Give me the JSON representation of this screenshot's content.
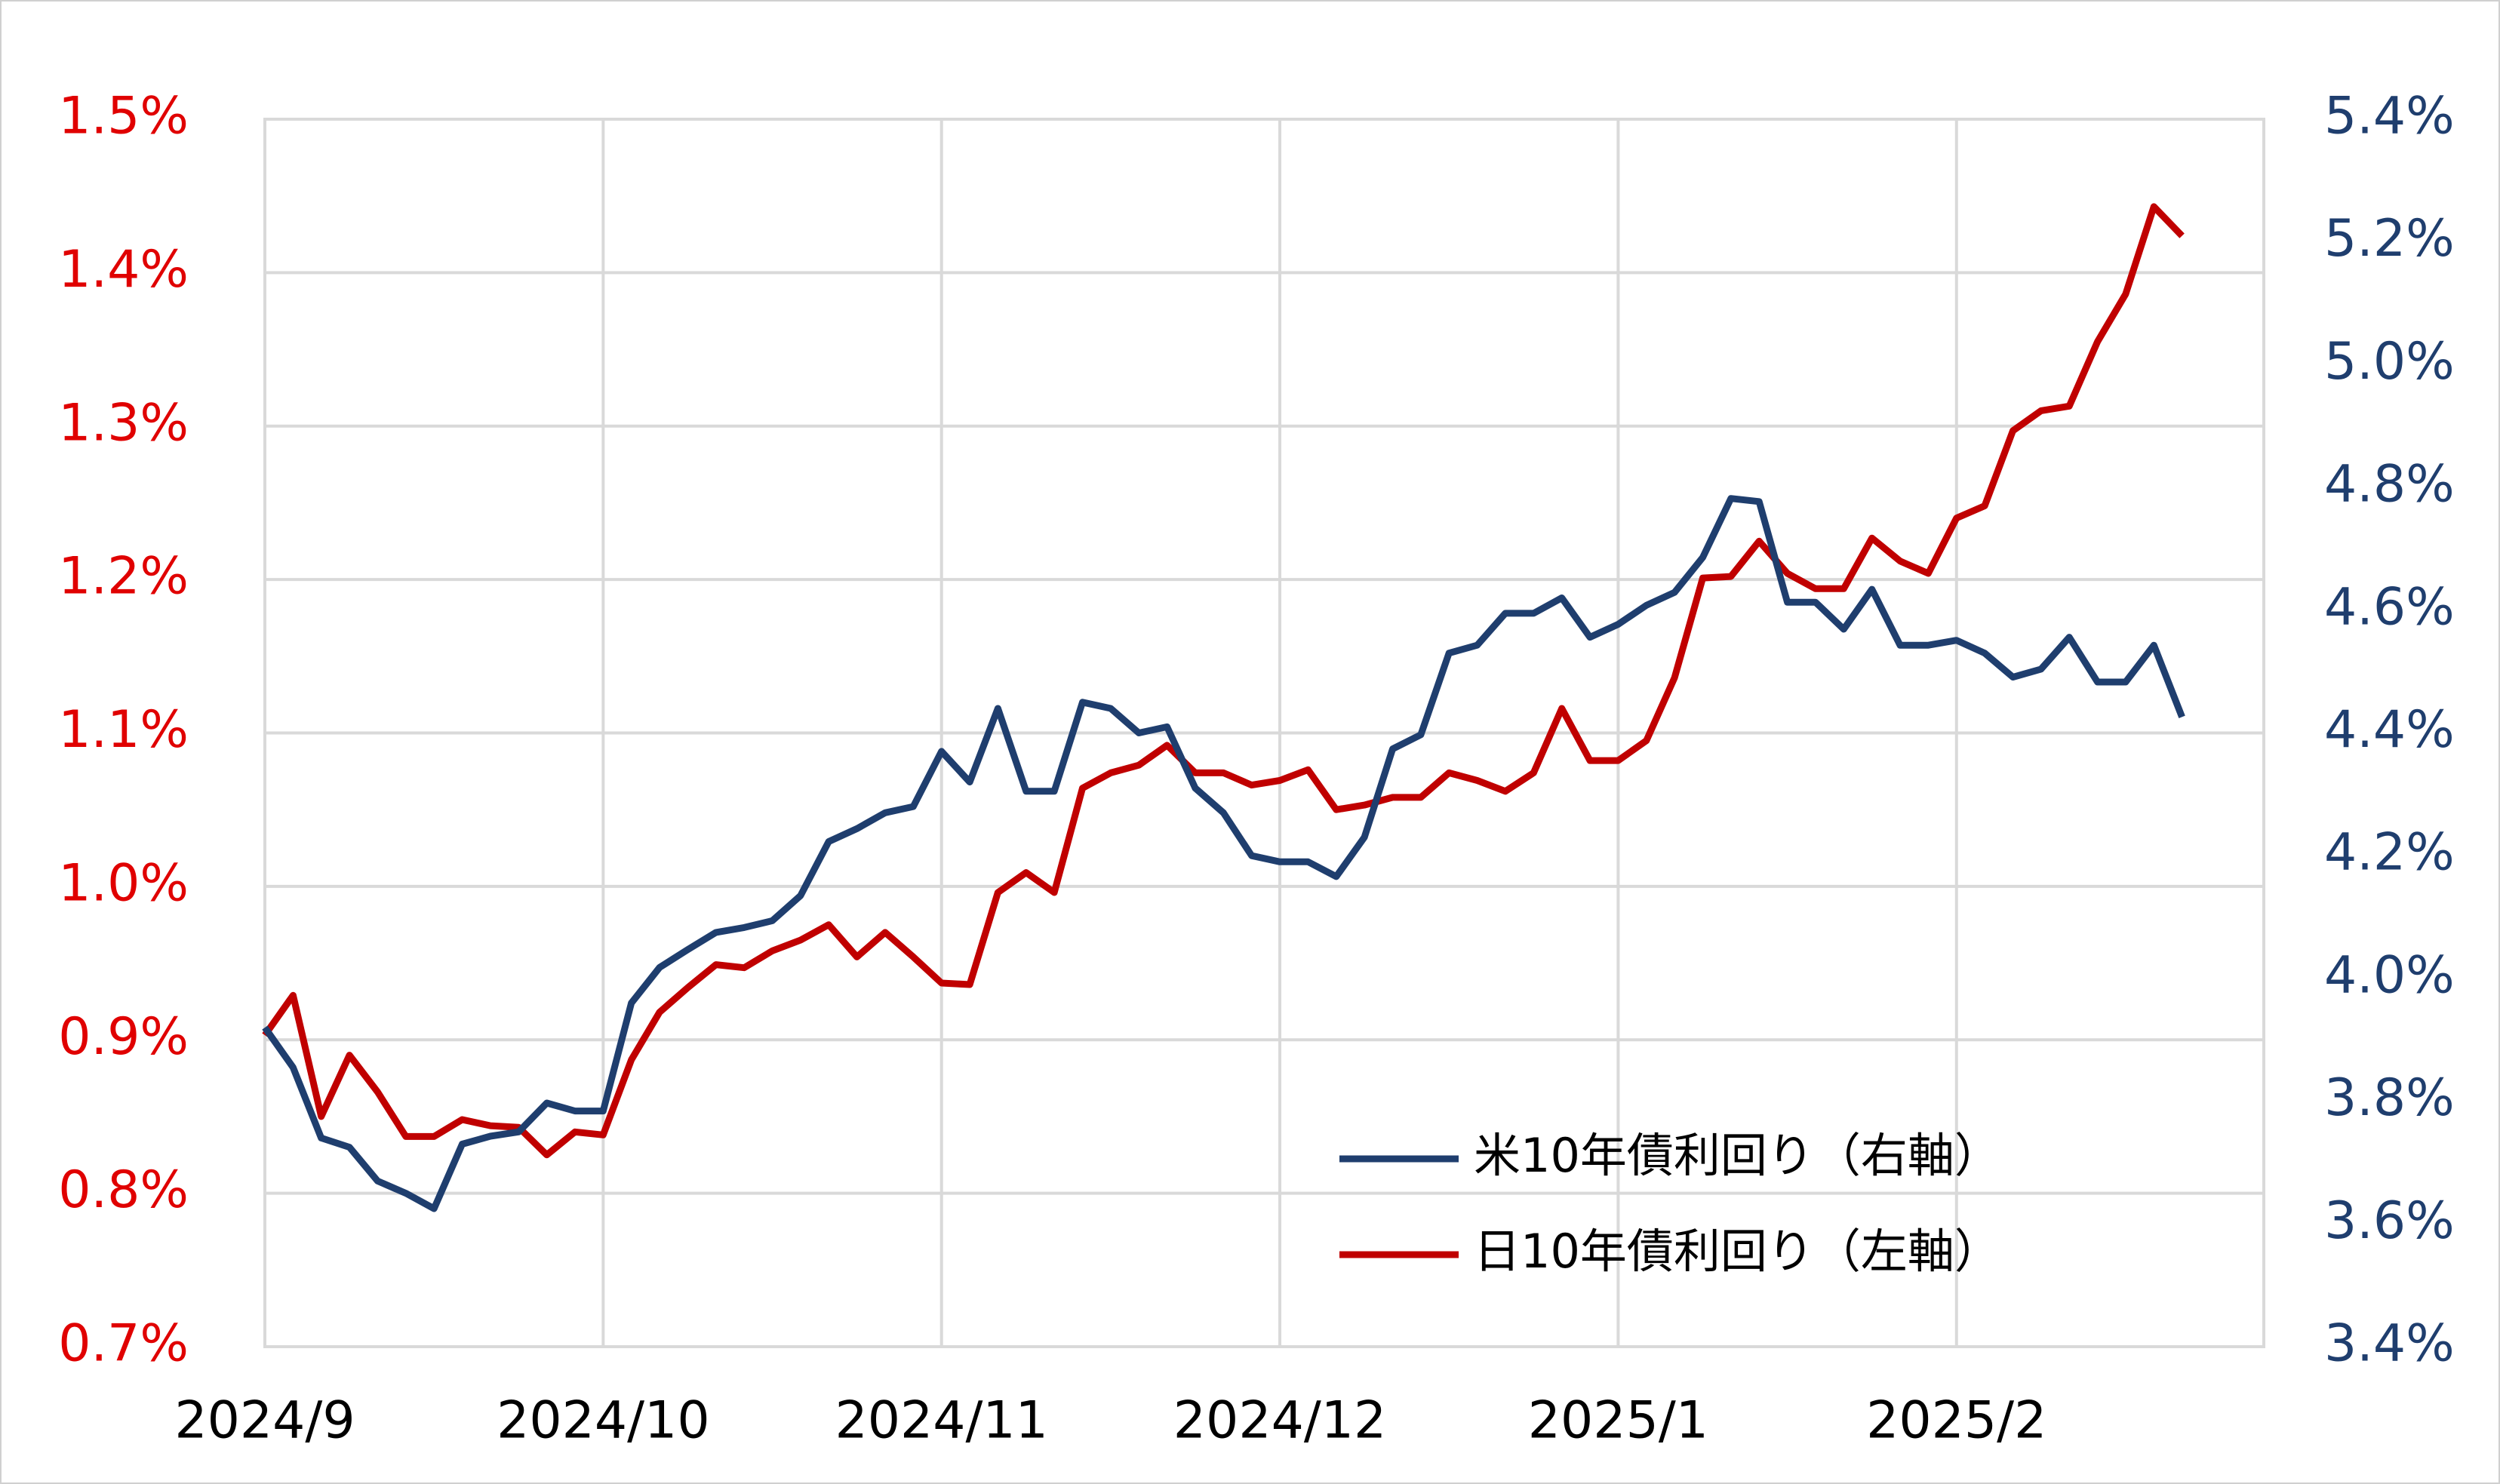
{
  "chart_data": {
    "type": "line",
    "categories": [
      "2024/9",
      null,
      null,
      null,
      null,
      null,
      null,
      null,
      null,
      null,
      null,
      null,
      "2024/10",
      null,
      null,
      null,
      null,
      null,
      null,
      null,
      null,
      null,
      null,
      null,
      "2024/11",
      null,
      null,
      null,
      null,
      null,
      null,
      null,
      null,
      null,
      null,
      null,
      "2024/12",
      null,
      null,
      null,
      null,
      null,
      null,
      null,
      null,
      null,
      null,
      null,
      "2025/1",
      null,
      null,
      null,
      null,
      null,
      null,
      null,
      null,
      null,
      null,
      null,
      "2025/2",
      null,
      null,
      null,
      null,
      null,
      null,
      null,
      null,
      null,
      null
    ],
    "series": [
      {
        "name": "米10年債利回り（右軸）",
        "color": "#1f3e6e",
        "axis": "y2",
        "values": [
          3.92,
          3.855,
          3.74,
          3.725,
          3.67,
          3.65,
          3.625,
          3.73,
          3.743,
          3.75,
          3.797,
          3.784,
          3.784,
          3.96,
          4.018,
          4.047,
          4.075,
          4.083,
          4.094,
          4.135,
          4.223,
          4.244,
          4.27,
          4.28,
          4.37,
          4.32,
          4.44,
          4.305,
          4.305,
          4.45,
          4.44,
          4.4,
          4.41,
          4.31,
          4.27,
          4.2,
          4.19,
          4.19,
          4.166,
          4.23,
          4.374,
          4.397,
          4.53,
          4.543,
          4.595,
          4.595,
          4.62,
          4.556,
          4.577,
          4.608,
          4.629,
          4.686,
          4.782,
          4.777,
          4.613,
          4.613,
          4.569,
          4.634,
          4.543,
          4.543,
          4.551,
          4.53,
          4.491,
          4.504,
          4.556,
          4.483,
          4.483,
          4.543,
          4.426,
          null,
          null
        ]
      },
      {
        "name": "日10年債利回り（左軸）",
        "color": "#c00000",
        "axis": "y",
        "values": [
          0.903,
          0.929,
          0.85,
          0.89,
          0.866,
          0.837,
          0.837,
          0.848,
          0.844,
          0.843,
          0.825,
          0.84,
          0.838,
          0.887,
          0.918,
          0.934,
          0.949,
          0.947,
          0.958,
          0.965,
          0.975,
          0.954,
          0.97,
          0.954,
          0.937,
          0.936,
          0.996,
          1.009,
          0.996,
          1.064,
          1.074,
          1.079,
          1.092,
          1.074,
          1.074,
          1.066,
          1.069,
          1.076,
          1.05,
          1.053,
          1.058,
          1.058,
          1.074,
          1.069,
          1.062,
          1.074,
          1.116,
          1.082,
          1.082,
          1.095,
          1.136,
          1.201,
          1.202,
          1.225,
          1.204,
          1.194,
          1.194,
          1.227,
          1.212,
          1.204,
          1.24,
          1.248,
          1.297,
          1.31,
          1.313,
          1.355,
          1.386,
          1.443,
          1.424,
          null,
          null
        ]
      }
    ],
    "ylim": [
      0.7,
      1.5
    ],
    "yticks": [
      {
        "value": 0.7,
        "label": "0.7%"
      },
      {
        "value": 0.8,
        "label": "0.8%"
      },
      {
        "value": 0.9,
        "label": "0.9%"
      },
      {
        "value": 1.0,
        "label": "1.0%"
      },
      {
        "value": 1.1,
        "label": "1.1%"
      },
      {
        "value": 1.2,
        "label": "1.2%"
      },
      {
        "value": 1.3,
        "label": "1.3%"
      },
      {
        "value": 1.4,
        "label": "1.4%"
      },
      {
        "value": 1.5,
        "label": "1.5%"
      }
    ],
    "yaxis_color": "#e00000",
    "y2lim": [
      3.4,
      5.4
    ],
    "y2ticks": [
      {
        "value": 3.4,
        "label": "3.4%"
      },
      {
        "value": 3.6,
        "label": "3.6%"
      },
      {
        "value": 3.8,
        "label": "3.8%"
      },
      {
        "value": 4.0,
        "label": "4.0%"
      },
      {
        "value": 4.2,
        "label": "4.2%"
      },
      {
        "value": 4.4,
        "label": "4.4%"
      },
      {
        "value": 4.6,
        "label": "4.6%"
      },
      {
        "value": 4.8,
        "label": "4.8%"
      },
      {
        "value": 5.0,
        "label": "5.0%"
      },
      {
        "value": 5.2,
        "label": "5.2%"
      },
      {
        "value": 5.4,
        "label": "5.4%"
      }
    ],
    "y2axis_color": "#1f3e6e",
    "grid": true,
    "legend": "bottom-right"
  }
}
